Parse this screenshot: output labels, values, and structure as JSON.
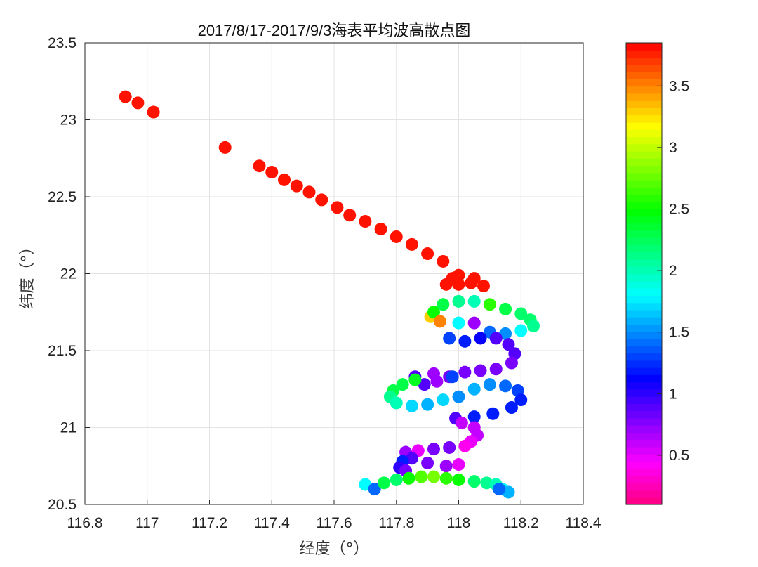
{
  "chart_data": {
    "type": "scatter",
    "title": "2017/8/17-2017/9/3海表平均波高散点图",
    "xlabel": "经度（°）",
    "ylabel": "纬度（°）",
    "xlim": [
      116.8,
      118.4
    ],
    "ylim": [
      20.5,
      23.5
    ],
    "xticks": [
      "116.8",
      "117",
      "117.2",
      "117.4",
      "117.6",
      "117.8",
      "118",
      "118.2",
      "118.4"
    ],
    "yticks": [
      "20.5",
      "21",
      "21.5",
      "22",
      "22.5",
      "23",
      "23.5"
    ],
    "grid": true,
    "colorbar": {
      "colormap": "hsv",
      "range": [
        0.1,
        3.85
      ],
      "ticks": [
        "0.5",
        "1",
        "1.5",
        "2",
        "2.5",
        "3",
        "3.5"
      ]
    },
    "points": [
      [
        116.93,
        23.15,
        3.8
      ],
      [
        116.97,
        23.11,
        3.8
      ],
      [
        117.02,
        23.05,
        3.8
      ],
      [
        117.25,
        22.82,
        3.8
      ],
      [
        117.36,
        22.7,
        3.8
      ],
      [
        117.4,
        22.66,
        3.8
      ],
      [
        117.44,
        22.61,
        3.8
      ],
      [
        117.48,
        22.57,
        3.8
      ],
      [
        117.52,
        22.53,
        3.8
      ],
      [
        117.56,
        22.48,
        3.8
      ],
      [
        117.61,
        22.43,
        3.8
      ],
      [
        117.65,
        22.38,
        3.8
      ],
      [
        117.7,
        22.34,
        3.8
      ],
      [
        117.75,
        22.29,
        3.8
      ],
      [
        117.8,
        22.24,
        3.8
      ],
      [
        117.85,
        22.19,
        3.8
      ],
      [
        117.9,
        22.13,
        3.8
      ],
      [
        117.95,
        22.08,
        3.8
      ],
      [
        118.0,
        21.99,
        3.8
      ],
      [
        117.96,
        21.93,
        3.8
      ],
      [
        118.0,
        21.93,
        3.8
      ],
      [
        118.04,
        21.94,
        3.8
      ],
      [
        118.08,
        21.92,
        3.8
      ],
      [
        117.98,
        21.97,
        3.8
      ],
      [
        118.05,
        21.97,
        3.8
      ],
      [
        117.91,
        21.72,
        3.3
      ],
      [
        117.92,
        21.75,
        2.5
      ],
      [
        117.95,
        21.8,
        2.3
      ],
      [
        118.0,
        21.82,
        2.1
      ],
      [
        118.05,
        21.82,
        2.0
      ],
      [
        118.1,
        21.8,
        2.6
      ],
      [
        118.15,
        21.77,
        2.3
      ],
      [
        118.2,
        21.74,
        2.2
      ],
      [
        118.23,
        21.7,
        2.2
      ],
      [
        118.24,
        21.66,
        2.1
      ],
      [
        118.2,
        21.63,
        1.8
      ],
      [
        118.15,
        21.61,
        1.5
      ],
      [
        118.1,
        21.62,
        1.4
      ],
      [
        118.05,
        21.68,
        0.7
      ],
      [
        118.0,
        21.68,
        1.8
      ],
      [
        117.94,
        21.69,
        3.5
      ],
      [
        117.97,
        21.58,
        1.3
      ],
      [
        118.02,
        21.56,
        1.2
      ],
      [
        118.07,
        21.58,
        1.1
      ],
      [
        118.12,
        21.58,
        0.9
      ],
      [
        118.16,
        21.54,
        0.9
      ],
      [
        118.18,
        21.48,
        0.9
      ],
      [
        118.17,
        21.42,
        0.8
      ],
      [
        118.12,
        21.38,
        0.8
      ],
      [
        118.07,
        21.37,
        0.8
      ],
      [
        118.02,
        21.36,
        0.8
      ],
      [
        117.97,
        21.33,
        0.8
      ],
      [
        117.93,
        21.3,
        0.7
      ],
      [
        117.89,
        21.28,
        0.9
      ],
      [
        117.86,
        21.33,
        0.9
      ],
      [
        117.92,
        21.35,
        0.7
      ],
      [
        117.98,
        21.33,
        1.3
      ],
      [
        117.86,
        21.31,
        2.4
      ],
      [
        117.82,
        21.28,
        2.3
      ],
      [
        117.79,
        21.24,
        2.3
      ],
      [
        117.78,
        21.2,
        2.1
      ],
      [
        117.8,
        21.16,
        2.0
      ],
      [
        117.85,
        21.14,
        1.7
      ],
      [
        117.9,
        21.15,
        1.6
      ],
      [
        117.95,
        21.18,
        1.7
      ],
      [
        118.0,
        21.2,
        1.5
      ],
      [
        118.05,
        21.25,
        1.6
      ],
      [
        118.1,
        21.28,
        1.5
      ],
      [
        118.15,
        21.27,
        1.4
      ],
      [
        118.19,
        21.24,
        1.3
      ],
      [
        118.2,
        21.18,
        1.2
      ],
      [
        118.17,
        21.13,
        1.2
      ],
      [
        118.11,
        21.09,
        1.2
      ],
      [
        118.05,
        21.07,
        1.2
      ],
      [
        117.99,
        21.06,
        0.9
      ],
      [
        118.01,
        21.03,
        0.6
      ],
      [
        118.05,
        21.0,
        0.6
      ],
      [
        118.06,
        20.95,
        0.6
      ],
      [
        118.04,
        20.91,
        0.5
      ],
      [
        118.02,
        20.88,
        0.4
      ],
      [
        117.97,
        20.87,
        0.8
      ],
      [
        117.92,
        20.86,
        0.8
      ],
      [
        117.87,
        20.85,
        0.5
      ],
      [
        117.83,
        20.84,
        0.7
      ],
      [
        117.85,
        20.8,
        0.9
      ],
      [
        117.9,
        20.77,
        0.8
      ],
      [
        117.96,
        20.75,
        0.7
      ],
      [
        118.0,
        20.76,
        0.5
      ],
      [
        117.82,
        20.78,
        1.2
      ],
      [
        117.81,
        20.74,
        1.0
      ],
      [
        117.83,
        20.72,
        0.8
      ],
      [
        117.7,
        20.63,
        1.8
      ],
      [
        117.73,
        20.6,
        1.4
      ],
      [
        117.76,
        20.64,
        2.3
      ],
      [
        117.8,
        20.66,
        2.2
      ],
      [
        117.84,
        20.67,
        2.5
      ],
      [
        117.88,
        20.68,
        2.7
      ],
      [
        117.92,
        20.68,
        2.8
      ],
      [
        117.96,
        20.67,
        2.6
      ],
      [
        118.0,
        20.66,
        2.5
      ],
      [
        118.05,
        20.65,
        2.2
      ],
      [
        118.09,
        20.64,
        2.1
      ],
      [
        118.12,
        20.63,
        2.0
      ],
      [
        118.14,
        20.6,
        1.8
      ],
      [
        118.16,
        20.58,
        1.6
      ],
      [
        118.13,
        20.6,
        1.4
      ]
    ]
  }
}
